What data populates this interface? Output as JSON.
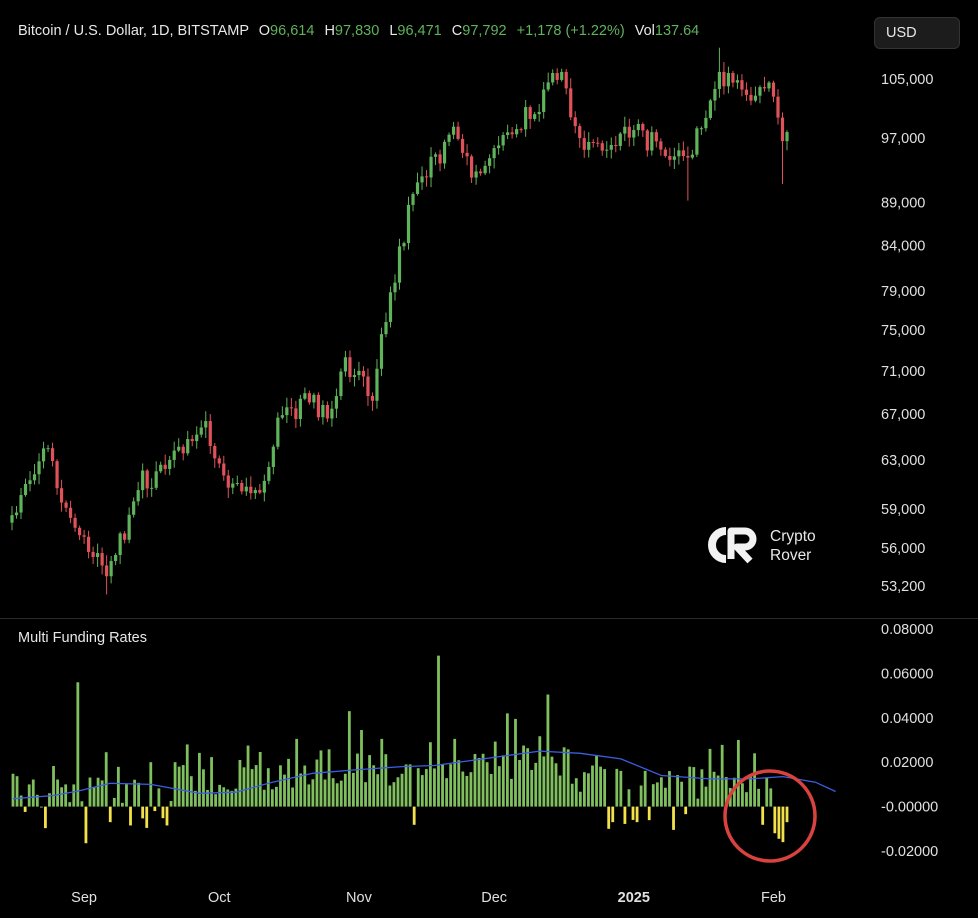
{
  "header": {
    "symbol": "Bitcoin / U.S. Dollar, 1D, BITSTAMP",
    "open_label": "O",
    "open": "96,614",
    "high_label": "H",
    "high": "97,830",
    "low_label": "L",
    "low": "96,471",
    "close_label": "C",
    "close": "97,792",
    "change": "+1,178 (+1.22%)",
    "vol_label": "Vol",
    "vol": "137.64"
  },
  "currency_button": "USD",
  "watermark": "Crypto Rover",
  "watermark_lines": [
    "Crypto",
    "Rover"
  ],
  "indicator_title": "Multi Funding Rates",
  "colors": {
    "up": "#5fb35b",
    "down": "#e0525a",
    "funding_pos": "#7fbf5e",
    "funding_neg": "#f2e14a",
    "funding_ma": "#3a5fe0",
    "highlight_circle": "#d9423f",
    "background": "#000000"
  },
  "chart_data": [
    {
      "type": "candlestick",
      "title": "Bitcoin / U.S. Dollar, 1D, BITSTAMP",
      "price_scale": "log",
      "y_ticks": [
        "105,000",
        "97,000",
        "89,000",
        "84,000",
        "79,000",
        "75,000",
        "71,000",
        "67,000",
        "63,000",
        "59,000",
        "56,000",
        "53,200"
      ],
      "y_tick_values": [
        105000,
        97000,
        89000,
        84000,
        79000,
        75000,
        71000,
        67000,
        63000,
        59000,
        56000,
        53200
      ],
      "x_ticks": [
        "Sep",
        "Oct",
        "Nov",
        "Dec",
        "2025",
        "Feb"
      ],
      "x_range": [
        "2024-08-16",
        "2025-02-04"
      ],
      "close_path": [
        [
          "2024-08-16",
          58500
        ],
        [
          "2024-08-24",
          64000
        ],
        [
          "2024-08-27",
          59500
        ],
        [
          "2024-09-06",
          53900
        ],
        [
          "2024-09-13",
          60500
        ],
        [
          "2024-09-20",
          63000
        ],
        [
          "2024-09-27",
          65800
        ],
        [
          "2024-10-03",
          60700
        ],
        [
          "2024-10-10",
          60300
        ],
        [
          "2024-10-15",
          66900
        ],
        [
          "2024-10-20",
          68900
        ],
        [
          "2024-10-25",
          66600
        ],
        [
          "2024-10-29",
          72300
        ],
        [
          "2024-11-04",
          68200
        ],
        [
          "2024-11-07",
          75800
        ],
        [
          "2024-11-13",
          90000
        ],
        [
          "2024-11-22",
          98500
        ],
        [
          "2024-11-26",
          92000
        ],
        [
          "2024-12-05",
          97500
        ],
        [
          "2024-12-16",
          106000
        ],
        [
          "2024-12-20",
          97000
        ],
        [
          "2024-12-26",
          95500
        ],
        [
          "2025-01-03",
          98000
        ],
        [
          "2025-01-08",
          94700
        ],
        [
          "2025-01-13",
          94500
        ],
        [
          "2025-01-20",
          106000
        ],
        [
          "2025-01-27",
          102000
        ],
        [
          "2025-01-31",
          104500
        ],
        [
          "2025-02-03",
          96600
        ],
        [
          "2025-02-04",
          97792
        ]
      ],
      "extremes": [
        {
          "date": "2024-09-06",
          "low": 52600
        },
        {
          "date": "2025-01-13",
          "low": 89200
        },
        {
          "date": "2025-01-20",
          "high": 109500
        },
        {
          "date": "2025-02-03",
          "low": 91200
        }
      ]
    },
    {
      "type": "bar",
      "title": "Multi Funding Rates",
      "y_ticks": [
        "0.08000",
        "0.06000",
        "0.04000",
        "0.02000",
        "-0.00000",
        "-0.02000"
      ],
      "y_tick_values": [
        0.08,
        0.06,
        0.04,
        0.02,
        0.0,
        -0.02
      ],
      "ylim": [
        -0.022,
        0.08
      ],
      "values": [
        0.0148,
        0.0137,
        0.005,
        -0.0024,
        0.01,
        0.0122,
        0.0053,
        0.0,
        -0.0097,
        0.006,
        0.0183,
        0.0122,
        0.0087,
        0.01,
        0.002,
        0.01,
        0.056,
        0.0024,
        -0.0165,
        0.0131,
        0.0089,
        0.013,
        0.0118,
        0.0245,
        -0.007,
        0.0039,
        0.0179,
        0.0017,
        0.0101,
        -0.0085,
        0.0121,
        0.0107,
        -0.0053,
        -0.0096,
        0.02,
        -0.002,
        0.0082,
        -0.0052,
        -0.0085,
        0.0025,
        0.02,
        0.018,
        0.0187,
        0.028,
        0.0137,
        0.0071,
        0.0242,
        0.0168,
        0.0075,
        0.0223,
        0.0056,
        0.0098,
        0.0087,
        0.0077,
        0.0071,
        0.0081,
        0.021,
        0.0177,
        0.0275,
        0.0169,
        0.0187,
        0.0246,
        0.0076,
        0.0173,
        0.0078,
        0.0089,
        0.0186,
        0.0144,
        0.0215,
        0.0086,
        0.0305,
        0.0149,
        0.0185,
        0.01,
        0.0123,
        0.0212,
        0.0253,
        0.0122,
        0.0258,
        0.0128,
        0.0105,
        0.0117,
        0.0148,
        0.043,
        0.0152,
        0.0239,
        0.0345,
        0.011,
        0.0232,
        0.0186,
        0.0146,
        0.0305,
        0.0236,
        0.0095,
        0.011,
        0.0132,
        0.0148,
        0.019,
        0.019,
        -0.0082,
        0.0173,
        0.0142,
        0.0169,
        0.029,
        0.0172,
        0.068,
        0.019,
        0.0128,
        0.0191,
        0.0305,
        0.0209,
        0.0158,
        0.0138,
        0.0155,
        0.0237,
        0.0219,
        0.0238,
        0.02,
        0.0147,
        0.0293,
        0.0182,
        0.0231,
        0.042,
        0.0125,
        0.0395,
        0.021,
        0.0275,
        0.0263,
        0.0165,
        0.0197,
        0.0317,
        0.0226,
        0.0505,
        0.0225,
        0.0195,
        0.014,
        0.0267,
        0.0258,
        0.0103,
        0.0128,
        0.0067,
        0.0155,
        0.015,
        0.0185,
        0.023,
        0.018,
        0.0169,
        -0.01,
        -0.007,
        0.017,
        0.0161,
        -0.0078,
        0.0078,
        -0.006,
        -0.007,
        0.0095,
        0.0161,
        -0.0061,
        0.0101,
        0.0109,
        0.0132,
        0.0085,
        0.016,
        -0.0105,
        0.0142,
        0.0112,
        -0.0034,
        0.018,
        0.0178,
        0.0036,
        0.0168,
        0.009,
        0.026,
        0.0157,
        0.014,
        0.0278,
        0.0133,
        0.0084,
        0.013,
        0.03,
        0.0105,
        0.0065,
        0.0136,
        0.024,
        0.008,
        -0.0082,
        0.013,
        0.0082,
        -0.012,
        -0.0145,
        -0.016,
        -0.007
      ],
      "moving_average": [
        [
          0,
          0.0035
        ],
        [
          10,
          0.005
        ],
        [
          16,
          0.007
        ],
        [
          24,
          0.0105
        ],
        [
          34,
          0.01
        ],
        [
          46,
          0.006
        ],
        [
          55,
          0.0065
        ],
        [
          64,
          0.011
        ],
        [
          74,
          0.015
        ],
        [
          84,
          0.0165
        ],
        [
          96,
          0.018
        ],
        [
          104,
          0.0185
        ],
        [
          114,
          0.021
        ],
        [
          122,
          0.023
        ],
        [
          130,
          0.025
        ],
        [
          140,
          0.024
        ],
        [
          150,
          0.0215
        ],
        [
          160,
          0.014
        ],
        [
          172,
          0.0125
        ],
        [
          182,
          0.0125
        ],
        [
          190,
          0.0135
        ],
        [
          198,
          0.011
        ],
        [
          203,
          0.0068
        ]
      ]
    }
  ]
}
